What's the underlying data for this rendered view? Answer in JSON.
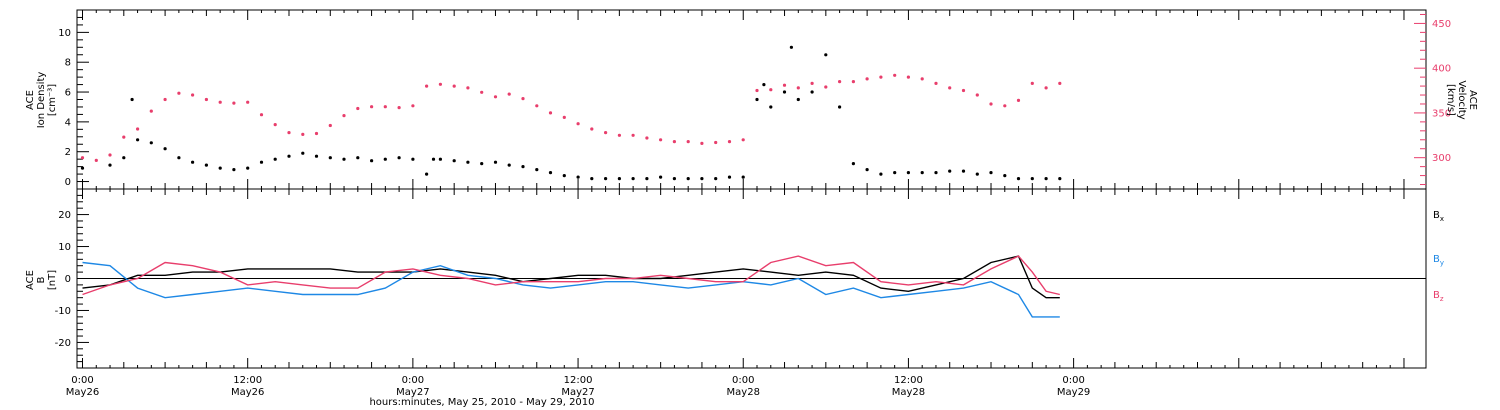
{
  "chart_data": [
    {
      "type": "scatter",
      "panel": "top",
      "title": "",
      "x_axis": {
        "range_hours": [
          -0.4,
          97.6
        ],
        "tick_labels": [
          {
            "time": "0:00",
            "date": "May26",
            "hour": 0
          },
          {
            "time": "12:00",
            "date": "May26",
            "hour": 12
          },
          {
            "time": "0:00",
            "date": "May27",
            "hour": 24
          },
          {
            "time": "12:00",
            "date": "May27",
            "hour": 36
          },
          {
            "time": "0:00",
            "date": "May28",
            "hour": 48
          },
          {
            "time": "12:00",
            "date": "May28",
            "hour": 60
          },
          {
            "time": "0:00",
            "date": "May29",
            "hour": 72
          }
        ]
      },
      "y_axis_left": {
        "label_lines": [
          "ACE",
          "Ion Density",
          "[cm⁻³]"
        ],
        "range": [
          -0.5,
          11.5
        ],
        "ticks": [
          0,
          2,
          4,
          6,
          8,
          10
        ],
        "color": "#000000"
      },
      "y_axis_right": {
        "label_lines": [
          "ACE",
          "Velocity",
          "[km/s]"
        ],
        "range": [
          265,
          465
        ],
        "ticks": [
          300,
          350,
          400,
          450
        ],
        "color": "#e83e6c"
      },
      "series": [
        {
          "name": "",
          "axis": "left",
          "color": "#000000",
          "x": [
            0,
            2,
            3,
            3.6,
            4,
            5,
            6,
            7,
            8,
            9,
            10,
            11,
            12,
            13,
            14,
            15,
            16,
            17,
            18,
            19,
            20,
            21,
            22,
            23,
            24,
            25,
            25.5,
            26,
            27,
            28,
            29,
            30,
            31,
            32,
            33,
            34,
            35,
            36,
            37,
            38,
            39,
            40,
            41,
            42,
            43,
            44,
            45,
            46,
            47,
            48,
            49,
            49.5,
            50,
            51,
            51.5,
            52,
            53,
            54,
            55,
            56,
            57,
            58,
            59,
            60,
            61,
            62,
            63,
            64,
            65,
            66,
            67,
            68,
            69,
            70,
            71
          ],
          "y": [
            0.9,
            1.1,
            1.6,
            5.5,
            2.8,
            2.6,
            2.2,
            1.6,
            1.3,
            1.1,
            0.9,
            0.8,
            0.9,
            1.3,
            1.5,
            1.7,
            1.9,
            1.7,
            1.6,
            1.5,
            1.6,
            1.4,
            1.5,
            1.6,
            1.5,
            0.5,
            1.5,
            1.5,
            1.4,
            1.3,
            1.2,
            1.3,
            1.1,
            1.0,
            0.8,
            0.6,
            0.4,
            0.3,
            0.2,
            0.2,
            0.2,
            0.2,
            0.2,
            0.3,
            0.2,
            0.2,
            0.2,
            0.2,
            0.3,
            0.3,
            5.5,
            6.5,
            5.0,
            6.0,
            9.0,
            5.5,
            6.0,
            8.5,
            5.0,
            1.2,
            0.8,
            0.5,
            0.6,
            0.6,
            0.6,
            0.6,
            0.7,
            0.7,
            0.5,
            0.6,
            0.4,
            0.2,
            0.2,
            0.2,
            0.2
          ]
        },
        {
          "name": "",
          "axis": "right",
          "color": "#e83e6c",
          "x": [
            0,
            1,
            2,
            3,
            4,
            5,
            6,
            7,
            8,
            9,
            10,
            11,
            12,
            13,
            14,
            15,
            16,
            17,
            18,
            19,
            20,
            21,
            22,
            23,
            24,
            25,
            26,
            27,
            28,
            29,
            30,
            31,
            32,
            33,
            34,
            35,
            36,
            37,
            38,
            39,
            40,
            41,
            42,
            43,
            44,
            45,
            46,
            47,
            48,
            49,
            50,
            51,
            52,
            53,
            54,
            55,
            56,
            57,
            58,
            59,
            60,
            61,
            62,
            63,
            64,
            65,
            66,
            67,
            68,
            69,
            70,
            71
          ],
          "y": [
            300,
            297,
            303,
            323,
            332,
            352,
            365,
            372,
            370,
            365,
            362,
            361,
            362,
            348,
            337,
            328,
            326,
            327,
            336,
            347,
            355,
            357,
            357,
            356,
            358,
            380,
            382,
            380,
            378,
            373,
            368,
            371,
            366,
            358,
            350,
            345,
            338,
            332,
            328,
            325,
            325,
            322,
            320,
            318,
            318,
            316,
            317,
            318,
            320,
            375,
            376,
            381,
            378,
            383,
            379,
            385,
            385,
            388,
            390,
            392,
            390,
            388,
            383,
            378,
            375,
            370,
            360,
            358,
            364,
            383,
            378,
            383
          ]
        }
      ]
    },
    {
      "type": "line",
      "panel": "bottom",
      "title": "",
      "x_axis": {
        "range_hours": [
          -0.4,
          97.6
        ],
        "label": "hours:minutes, May 25, 2010 - May 29, 2010"
      },
      "y_axis_left": {
        "label_lines": [
          "ACE",
          "B",
          "[nT]"
        ],
        "range": [
          -28,
          28
        ],
        "ticks": [
          -20,
          -10,
          0,
          10,
          20
        ],
        "zero_line": true
      },
      "legend_placement": "right",
      "series": [
        {
          "name": "Bx",
          "name_main": "B",
          "name_sub": "x",
          "color": "#000000",
          "x": [
            0,
            2,
            4,
            6,
            8,
            10,
            12,
            14,
            16,
            18,
            20,
            22,
            24,
            26,
            28,
            30,
            32,
            34,
            36,
            38,
            40,
            42,
            44,
            46,
            48,
            50,
            52,
            54,
            56,
            58,
            60,
            62,
            64,
            66,
            68,
            69,
            70,
            71
          ],
          "y": [
            -3,
            -2,
            1,
            1,
            2,
            2,
            3,
            3,
            3,
            3,
            2,
            2,
            2,
            3,
            2,
            1,
            -1,
            0,
            1,
            1,
            0,
            0,
            1,
            2,
            3,
            2,
            1,
            2,
            1,
            -3,
            -4,
            -2,
            0,
            5,
            7,
            -3,
            -6,
            -6
          ]
        },
        {
          "name": "By",
          "name_main": "B",
          "name_sub": "y",
          "color": "#1e88e5",
          "x": [
            0,
            2,
            4,
            6,
            8,
            10,
            12,
            14,
            16,
            18,
            20,
            22,
            24,
            26,
            28,
            30,
            32,
            34,
            36,
            38,
            40,
            42,
            44,
            46,
            48,
            50,
            52,
            54,
            56,
            58,
            60,
            62,
            64,
            66,
            68,
            69,
            70,
            71
          ],
          "y": [
            5,
            4,
            -3,
            -6,
            -5,
            -4,
            -3,
            -4,
            -5,
            -5,
            -5,
            -3,
            2,
            4,
            1,
            0,
            -2,
            -3,
            -2,
            -1,
            -1,
            -2,
            -3,
            -2,
            -1,
            -2,
            0,
            -5,
            -3,
            -6,
            -5,
            -4,
            -3,
            -1,
            -5,
            -12,
            -12,
            -12
          ]
        },
        {
          "name": "Bz",
          "name_main": "B",
          "name_sub": "z",
          "color": "#e83e6c",
          "x": [
            0,
            2,
            4,
            6,
            8,
            10,
            12,
            14,
            16,
            18,
            20,
            22,
            24,
            26,
            28,
            30,
            32,
            34,
            36,
            38,
            40,
            42,
            44,
            46,
            48,
            50,
            52,
            54,
            56,
            58,
            60,
            62,
            64,
            66,
            68,
            69,
            70,
            71
          ],
          "y": [
            -5,
            -2,
            0,
            5,
            4,
            2,
            -2,
            -1,
            -2,
            -3,
            -3,
            2,
            3,
            1,
            0,
            -2,
            -1,
            -1,
            -1,
            0,
            0,
            1,
            0,
            -1,
            -1,
            5,
            7,
            4,
            5,
            -1,
            -2,
            -1,
            -2,
            3,
            7,
            2,
            -4,
            -5
          ]
        }
      ]
    }
  ]
}
